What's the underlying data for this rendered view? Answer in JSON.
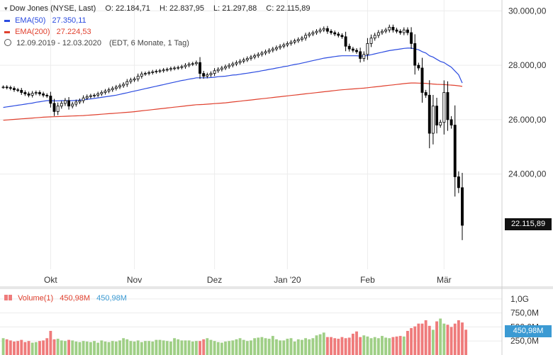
{
  "header": {
    "instrument": "Dow Jones (NYSE, Last)",
    "open": "O: 22.184,71",
    "high": "H: 22.837,95",
    "low": "L: 21.297,88",
    "close": "C: 22.115,89",
    "ema50_label": "EMA(50)",
    "ema50_value": "27.350,11",
    "ema200_label": "EMA(200)",
    "ema200_value": "27.224,53",
    "range_label": "12.09.2019 - 12.03.2020",
    "range_detail": "(EDT, 6 Monate, 1 Tag)"
  },
  "volume_legend": {
    "label": "Volume(1)",
    "value_red": "450,98M",
    "value_blue": "450,98M"
  },
  "price_tag": "22.115,89",
  "volume_tag": "450,98M",
  "colors": {
    "up": "#000000",
    "down": "#000000",
    "ema50": "#2b4be0",
    "ema200": "#e0412f",
    "volume_up": "#9fcf86",
    "volume_down": "#ef7b7b",
    "price_tag_bg": "#111111",
    "volume_tag_bg": "#3b9ad3"
  },
  "chart_data": {
    "type": "candlestick",
    "y_ticks": [
      "30.000,00",
      "28.000,00",
      "26.000,00",
      "24.000,00"
    ],
    "y_tick_values": [
      30000,
      28000,
      26000,
      24000
    ],
    "ylim": [
      20500,
      30400
    ],
    "x_ticks": [
      "Okt",
      "Nov",
      "Dez",
      "Jan '20",
      "Feb",
      "Mär"
    ],
    "x_tick_days": [
      13,
      36,
      58,
      78,
      100,
      121
    ],
    "volume_ticks": [
      "1,0G",
      "750,0M",
      "500,0M",
      "250,0M"
    ],
    "volume_tick_values": [
      1000,
      750,
      500,
      250
    ],
    "closes": [
      27200,
      27180,
      27150,
      27100,
      27080,
      27000,
      26950,
      26900,
      26970,
      27000,
      26950,
      26900,
      26870,
      26600,
      26300,
      26500,
      26600,
      26700,
      26500,
      26570,
      26650,
      26700,
      26800,
      26850,
      26880,
      26900,
      26950,
      27000,
      27050,
      27100,
      27150,
      27200,
      27250,
      27300,
      27400,
      27460,
      27500,
      27600,
      27680,
      27700,
      27730,
      27760,
      27780,
      27800,
      27830,
      27850,
      27880,
      27900,
      27920,
      27950,
      28000,
      28040,
      28060,
      28100,
      27700,
      27600,
      27650,
      27700,
      27800,
      27850,
      27900,
      27950,
      28000,
      28050,
      28100,
      28150,
      28200,
      28250,
      28300,
      28350,
      28400,
      28450,
      28500,
      28550,
      28600,
      28650,
      28700,
      28750,
      28800,
      28850,
      28900,
      28950,
      29000,
      29100,
      29150,
      29200,
      29250,
      29300,
      29350,
      29250,
      29200,
      29150,
      29100,
      29050,
      28700,
      28600,
      28550,
      28500,
      28250,
      28400,
      28800,
      29000,
      29100,
      29200,
      29250,
      29300,
      29400,
      29300,
      29250,
      29200,
      29300,
      29200,
      28800,
      28000,
      27900,
      27000,
      26900,
      25500,
      26500,
      25800,
      25900,
      27000,
      26000,
      25800,
      23900,
      23500,
      22116
    ],
    "volumes": [
      300,
      280,
      260,
      240,
      250,
      270,
      230,
      250,
      220,
      230,
      250,
      260,
      300,
      430,
      280,
      290,
      260,
      250,
      270,
      260,
      240,
      230,
      250,
      240,
      230,
      250,
      220,
      260,
      240,
      230,
      250,
      240,
      260,
      300,
      280,
      250,
      240,
      260,
      230,
      250,
      250,
      240,
      270,
      270,
      260,
      250,
      240,
      300,
      280,
      260,
      260,
      260,
      240,
      250,
      250,
      280,
      300,
      270,
      250,
      230,
      220,
      240,
      250,
      260,
      280,
      300,
      270,
      250,
      260,
      300,
      310,
      320,
      300,
      290,
      340,
      280,
      260,
      260,
      290,
      300,
      240,
      280,
      270,
      300,
      280,
      300,
      350,
      370,
      400,
      320,
      320,
      300,
      290,
      320,
      300,
      310,
      380,
      420,
      320,
      350,
      330,
      300,
      320,
      300,
      340,
      310,
      300,
      320,
      330,
      340,
      330,
      430,
      480,
      510,
      560,
      560,
      620,
      520,
      450,
      600,
      650,
      560,
      540,
      500,
      560,
      620,
      580,
      451
    ],
    "ema50": [
      26450,
      26470,
      26490,
      26510,
      26530,
      26550,
      26570,
      26590,
      26610,
      26640,
      26660,
      26680,
      26700,
      26700,
      26690,
      26690,
      26700,
      26700,
      26700,
      26700,
      26710,
      26720,
      26730,
      26750,
      26760,
      26780,
      26800,
      26820,
      26840,
      26860,
      26880,
      26900,
      26930,
      26960,
      26990,
      27020,
      27050,
      27080,
      27110,
      27140,
      27170,
      27200,
      27230,
      27260,
      27290,
      27320,
      27350,
      27380,
      27410,
      27440,
      27460,
      27490,
      27510,
      27540,
      27540,
      27540,
      27540,
      27550,
      27560,
      27580,
      27590,
      27600,
      27620,
      27640,
      27650,
      27670,
      27690,
      27710,
      27730,
      27750,
      27770,
      27800,
      27820,
      27850,
      27870,
      27900,
      27920,
      27950,
      27970,
      28000,
      28030,
      28050,
      28080,
      28110,
      28140,
      28170,
      28200,
      28230,
      28260,
      28280,
      28300,
      28320,
      28340,
      28350,
      28350,
      28350,
      28350,
      28350,
      28340,
      28340,
      28360,
      28390,
      28420,
      28450,
      28480,
      28510,
      28540,
      28560,
      28580,
      28600,
      28620,
      28630,
      28630,
      28600,
      28570,
      28500,
      28450,
      28350,
      28300,
      28220,
      28140,
      28100,
      28010,
      27930,
      27790,
      27650,
      27350
    ],
    "ema200": [
      25980,
      25990,
      26000,
      26010,
      26020,
      26030,
      26040,
      26050,
      26060,
      26070,
      26080,
      26090,
      26100,
      26105,
      26110,
      26115,
      26120,
      26125,
      26130,
      26135,
      26140,
      26145,
      26150,
      26160,
      26170,
      26180,
      26190,
      26200,
      26210,
      26220,
      26230,
      26240,
      26250,
      26260,
      26270,
      26280,
      26295,
      26310,
      26325,
      26340,
      26355,
      26370,
      26385,
      26400,
      26415,
      26430,
      26445,
      26460,
      26475,
      26490,
      26505,
      26520,
      26535,
      26550,
      26555,
      26560,
      26570,
      26580,
      26590,
      26600,
      26610,
      26620,
      26635,
      26650,
      26665,
      26680,
      26695,
      26710,
      26725,
      26740,
      26755,
      26770,
      26785,
      26800,
      26815,
      26830,
      26845,
      26860,
      26875,
      26890,
      26905,
      26920,
      26935,
      26950,
      26965,
      26980,
      26995,
      27010,
      27025,
      27040,
      27055,
      27070,
      27085,
      27100,
      27110,
      27120,
      27130,
      27140,
      27150,
      27160,
      27175,
      27190,
      27205,
      27220,
      27235,
      27250,
      27265,
      27280,
      27295,
      27310,
      27325,
      27340,
      27350,
      27350,
      27345,
      27340,
      27335,
      27320,
      27310,
      27300,
      27295,
      27290,
      27280,
      27270,
      27260,
      27245,
      27225
    ]
  }
}
